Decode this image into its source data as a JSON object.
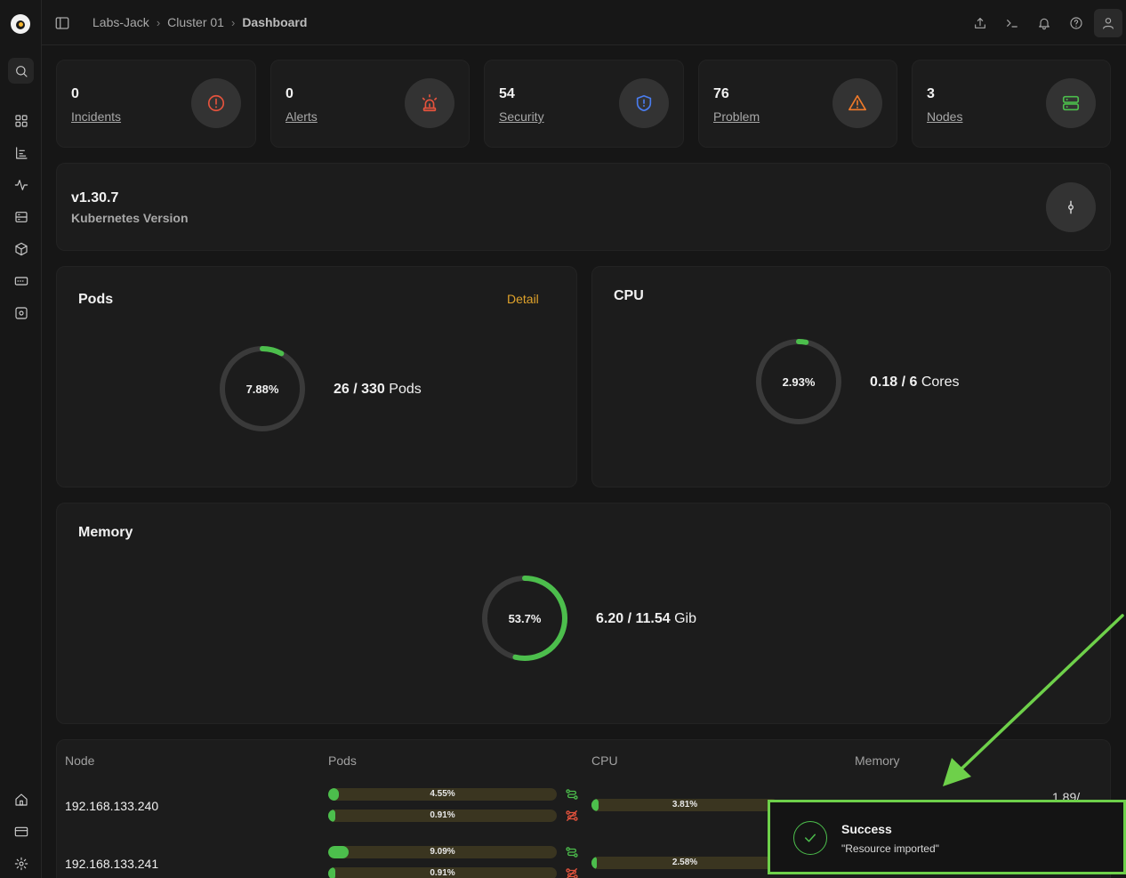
{
  "breadcrumb": [
    "Labs-Jack",
    "Cluster 01",
    "Dashboard"
  ],
  "stats": [
    {
      "value": "0",
      "label": "Incidents",
      "icon": "alert-circle-icon",
      "color": "#e5533d"
    },
    {
      "value": "0",
      "label": "Alerts",
      "icon": "siren-icon",
      "color": "#e5533d"
    },
    {
      "value": "54",
      "label": "Security",
      "icon": "shield-icon",
      "color": "#4a7df0"
    },
    {
      "value": "76",
      "label": "Problem",
      "icon": "warning-triangle-icon",
      "color": "#f07a2a"
    },
    {
      "value": "3",
      "label": "Nodes",
      "icon": "server-icon",
      "color": "#4cbe4c"
    }
  ],
  "version": {
    "value": "v1.30.7",
    "label": "Kubernetes Version"
  },
  "pods": {
    "title": "Pods",
    "detail": "Detail",
    "percent": "7.88%",
    "percent_value": 7.88,
    "used": "26 / 330",
    "unit": "Pods"
  },
  "cpu": {
    "title": "CPU",
    "percent": "2.93%",
    "percent_value": 2.93,
    "used": "0.18 / 6",
    "unit": "Cores"
  },
  "memory": {
    "title": "Memory",
    "percent": "53.7%",
    "percent_value": 53.7,
    "used": "6.20 / 11.54",
    "unit": "Gib"
  },
  "table": {
    "headers": [
      "Node",
      "Pods",
      "CPU",
      "Memory"
    ],
    "rows": [
      {
        "node": "192.168.133.240",
        "pods_bar1": "4.55%",
        "pods_bar1_value": 4.55,
        "pods_bar2": "0.91%",
        "pods_bar2_value": 0.91,
        "cpu": "3.81%",
        "cpu_value": 3.81,
        "memory_fragment": "1.89/"
      },
      {
        "node": "192.168.133.241",
        "pods_bar1": "9.09%",
        "pods_bar1_value": 9.09,
        "pods_bar2": "0.91%",
        "pods_bar2_value": 0.91,
        "cpu": "2.58%",
        "cpu_value": 2.58,
        "memory_fragment": ""
      }
    ]
  },
  "toast": {
    "title": "Success",
    "message": "\"Resource imported\""
  },
  "colors": {
    "accent_green": "#4cbe4c",
    "link_orange": "#e0a32b",
    "highlight": "#6ed04a"
  }
}
